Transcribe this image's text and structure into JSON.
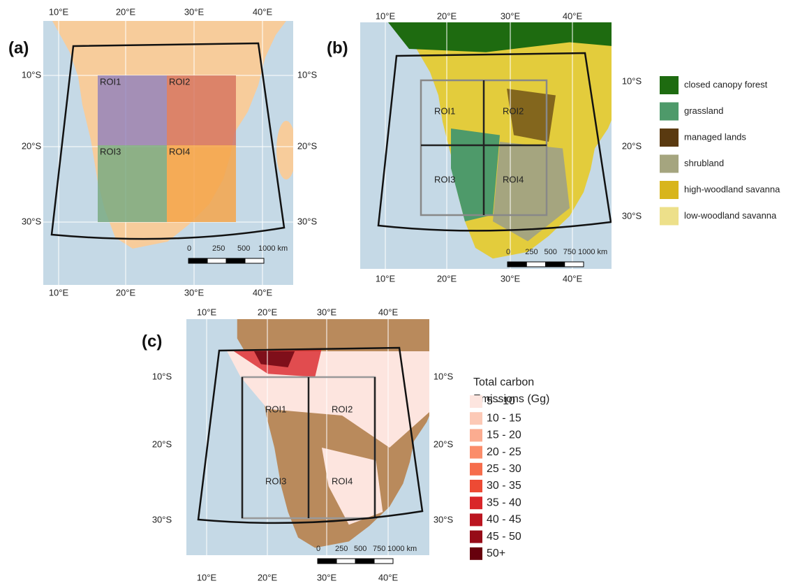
{
  "panels": [
    {
      "label": "(a)",
      "lon_labels": [
        "10°E",
        "20°E",
        "30°E",
        "40°E"
      ],
      "lat_labels": [
        "10°S",
        "20°S",
        "30°S"
      ],
      "rois": [
        "ROI1",
        "ROI2",
        "ROI3",
        "ROI4"
      ],
      "scale_labels": [
        "0",
        "250",
        "500",
        "1000 km"
      ]
    },
    {
      "label": "(b)",
      "lon_labels": [
        "10°E",
        "20°E",
        "30°E",
        "40°E"
      ],
      "lat_labels": [
        "10°S",
        "20°S",
        "30°S"
      ],
      "rois": [
        "ROI1",
        "ROI2",
        "ROI3",
        "ROI4"
      ],
      "scale_labels": [
        "0",
        "250",
        "500",
        "750",
        "1000 km"
      ]
    },
    {
      "label": "(c)",
      "lon_labels": [
        "10°E",
        "20°E",
        "30°E",
        "40°E"
      ],
      "lat_labels": [
        "10°S",
        "20°S",
        "30°S"
      ],
      "rois": [
        "ROI1",
        "ROI2",
        "ROI3",
        "ROI4"
      ],
      "scale_labels": [
        "0",
        "250",
        "500",
        "750",
        "1000 km"
      ]
    }
  ],
  "land_cover_legend": {
    "items": [
      {
        "label": "closed canopy forest",
        "color": "#1e6b10"
      },
      {
        "label": "grassland",
        "color": "#4e9a6a"
      },
      {
        "label": "managed lands",
        "color": "#5a3a10"
      },
      {
        "label": "shrubland",
        "color": "#a5a57f"
      },
      {
        "label": "high-woodland savanna",
        "color": "#d8b51c"
      },
      {
        "label": "low-woodland savanna",
        "color": "#ede08a"
      }
    ]
  },
  "emissions_legend": {
    "title": [
      "Total carbon",
      "Emissions (Gg)"
    ],
    "items": [
      {
        "label": "5 - 10",
        "color": "#fde5df"
      },
      {
        "label": "10 - 15",
        "color": "#fcc9b6"
      },
      {
        "label": "15 - 20",
        "color": "#fbac90"
      },
      {
        "label": "20 - 25",
        "color": "#fb8d6a"
      },
      {
        "label": "25 - 30",
        "color": "#f66d4c"
      },
      {
        "label": "30 - 35",
        "color": "#ed4a34"
      },
      {
        "label": "35 - 40",
        "color": "#d9262a"
      },
      {
        "label": "40 - 45",
        "color": "#bb1520"
      },
      {
        "label": "45 - 50",
        "color": "#960b18"
      },
      {
        "label": "50+",
        "color": "#67000d"
      }
    ]
  }
}
